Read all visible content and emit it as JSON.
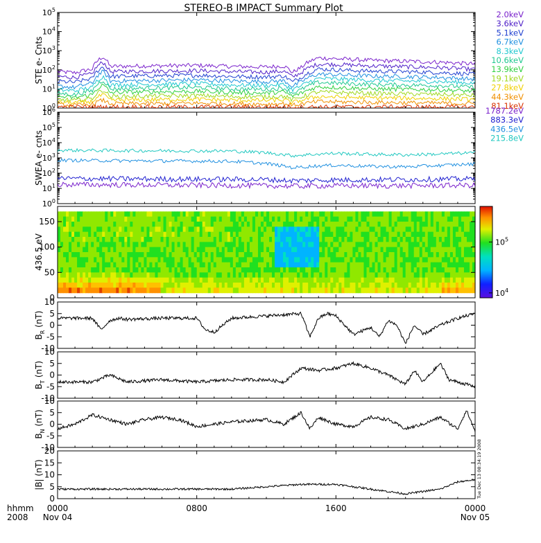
{
  "title": "STEREO-B IMPACT Summary Plot",
  "timestamp": "Tue Dec 13 08:34:19 2008",
  "time_axis": {
    "row1_label": "hhmm",
    "row2_label": "2008",
    "ticks": [
      {
        "t": 0,
        "label": "0000",
        "sub": "Nov 04"
      },
      {
        "t": 8,
        "label": "0800",
        "sub": ""
      },
      {
        "t": 16,
        "label": "1600",
        "sub": ""
      },
      {
        "t": 24,
        "label": "0000",
        "sub": "Nov 05"
      }
    ],
    "range_hours": [
      0,
      24
    ]
  },
  "chart_data": [
    {
      "id": "ste",
      "type": "line",
      "ylabel": "STE e- Cnts",
      "yscale": "log",
      "ylim": [
        1,
        100000
      ],
      "yticks": [
        {
          "v": 1,
          "base": "10",
          "exp": "0"
        },
        {
          "v": 10,
          "base": "10",
          "exp": "1"
        },
        {
          "v": 100,
          "base": "10",
          "exp": "2"
        },
        {
          "v": 1000,
          "base": "10",
          "exp": "3"
        },
        {
          "v": 10000,
          "base": "10",
          "exp": "4"
        },
        {
          "v": 100000,
          "base": "10",
          "exp": "5"
        }
      ],
      "series": [
        {
          "name": "2.0keV",
          "color": "#7a22cc",
          "x": [
            0,
            1,
            2,
            2.6,
            3,
            5,
            8,
            10,
            12,
            13,
            13.5,
            14,
            15,
            16,
            18,
            20,
            22,
            24
          ],
          "y": [
            80,
            70,
            110,
            480,
            150,
            160,
            170,
            150,
            140,
            160,
            70,
            130,
            420,
            380,
            310,
            280,
            250,
            200
          ]
        },
        {
          "name": "3.6keV",
          "color": "#4f20c8",
          "x": [
            0,
            1,
            2,
            2.6,
            3,
            5,
            8,
            10,
            12,
            13,
            13.5,
            14,
            15,
            16,
            18,
            20,
            22,
            24
          ],
          "y": [
            45,
            40,
            60,
            250,
            80,
            85,
            90,
            80,
            75,
            85,
            40,
            70,
            200,
            190,
            160,
            145,
            130,
            105
          ]
        },
        {
          "name": "5.1keV",
          "color": "#2040d0",
          "x": [
            0,
            1,
            2,
            2.6,
            3,
            5,
            8,
            10,
            12,
            13,
            13.5,
            14,
            15,
            16,
            18,
            20,
            22,
            24
          ],
          "y": [
            25,
            22,
            35,
            140,
            45,
            48,
            52,
            45,
            42,
            48,
            22,
            40,
            110,
            100,
            85,
            80,
            72,
            58
          ]
        },
        {
          "name": "6.7keV",
          "color": "#2090e0",
          "x": [
            0,
            1,
            2,
            2.6,
            3,
            5,
            8,
            10,
            12,
            13,
            13.5,
            14,
            15,
            16,
            18,
            20,
            22,
            24
          ],
          "y": [
            14,
            12,
            20,
            80,
            26,
            27,
            30,
            26,
            24,
            27,
            13,
            23,
            60,
            55,
            47,
            44,
            40,
            32
          ]
        },
        {
          "name": "8.3keV",
          "color": "#20c8d0",
          "x": [
            0,
            1,
            2,
            2.6,
            3,
            5,
            8,
            10,
            12,
            13,
            13.5,
            14,
            15,
            16,
            18,
            20,
            22,
            24
          ],
          "y": [
            9,
            8,
            12,
            45,
            16,
            17,
            19,
            16,
            15,
            17,
            9,
            14,
            35,
            33,
            28,
            26,
            24,
            20
          ]
        },
        {
          "name": "10.6keV",
          "color": "#20c890",
          "x": [
            0,
            1,
            2,
            2.6,
            3,
            5,
            8,
            10,
            12,
            13,
            13.5,
            14,
            15,
            16,
            18,
            20,
            22,
            24
          ],
          "y": [
            6,
            5,
            8,
            28,
            10,
            11,
            12,
            10,
            9.5,
            11,
            6,
            9,
            22,
            20,
            17,
            16,
            15,
            12
          ]
        },
        {
          "name": "13.9keV",
          "color": "#30d040",
          "x": [
            0,
            1,
            2,
            2.6,
            3,
            5,
            8,
            10,
            12,
            13,
            13.5,
            14,
            15,
            16,
            18,
            20,
            22,
            24
          ],
          "y": [
            4,
            3.5,
            5,
            16,
            6.5,
            7,
            7.5,
            6.5,
            6,
            7,
            4,
            6,
            13,
            12,
            10,
            9.5,
            9,
            7.5
          ]
        },
        {
          "name": "19.1keV",
          "color": "#a0d820",
          "x": [
            0,
            1,
            2,
            2.6,
            3,
            5,
            8,
            10,
            12,
            13,
            13.5,
            14,
            15,
            16,
            18,
            20,
            22,
            24
          ],
          "y": [
            2.8,
            2.5,
            3.2,
            9,
            4,
            4.2,
            4.5,
            4,
            3.8,
            4.2,
            2.6,
            3.8,
            7,
            6.5,
            5.8,
            5.5,
            5.2,
            4.5
          ]
        },
        {
          "name": "27.8keV",
          "color": "#f0d000",
          "x": [
            0,
            1,
            2,
            2.6,
            3,
            5,
            8,
            10,
            12,
            13,
            13.5,
            14,
            15,
            16,
            18,
            20,
            22,
            24
          ],
          "y": [
            2,
            1.9,
            2.2,
            5,
            2.6,
            2.7,
            2.9,
            2.6,
            2.5,
            2.7,
            1.9,
            2.5,
            4,
            3.8,
            3.4,
            3.3,
            3.1,
            2.8
          ]
        },
        {
          "name": "44.3keV",
          "color": "#f09000",
          "x": [
            0,
            1,
            2,
            2.6,
            3,
            5,
            8,
            10,
            12,
            13,
            13.5,
            14,
            15,
            16,
            18,
            20,
            22,
            24
          ],
          "y": [
            1.5,
            1.4,
            1.6,
            2.6,
            1.7,
            1.7,
            1.8,
            1.7,
            1.6,
            1.7,
            1.4,
            1.6,
            2.2,
            2.1,
            2,
            1.9,
            1.8,
            1.7
          ]
        },
        {
          "name": "81.1keV",
          "color": "#d83000",
          "x": [
            0,
            24
          ],
          "y": [
            1.15,
            1.15
          ]
        }
      ]
    },
    {
      "id": "swea",
      "type": "line",
      "ylabel": "SWEA e- cnts",
      "yscale": "log",
      "ylim": [
        1,
        1000000
      ],
      "yticks": [
        {
          "v": 1,
          "base": "10",
          "exp": "0"
        },
        {
          "v": 10,
          "base": "10",
          "exp": "1"
        },
        {
          "v": 100,
          "base": "10",
          "exp": "2"
        },
        {
          "v": 1000,
          "base": "10",
          "exp": "3"
        },
        {
          "v": 10000,
          "base": "10",
          "exp": "4"
        },
        {
          "v": 100000,
          "base": "10",
          "exp": "5"
        },
        {
          "v": 1000000,
          "base": "10",
          "exp": "6"
        }
      ],
      "series": [
        {
          "name": "1787.2eV",
          "color": "#7a22cc",
          "x": [
            0,
            4,
            8,
            12,
            13.5,
            16,
            20,
            24
          ],
          "y": [
            18,
            17,
            16,
            15,
            14,
            15,
            15,
            16
          ]
        },
        {
          "name": "883.3eV",
          "color": "#2020d0",
          "x": [
            0,
            4,
            8,
            12,
            13.5,
            16,
            20,
            24
          ],
          "y": [
            45,
            42,
            40,
            38,
            32,
            36,
            38,
            42
          ]
        },
        {
          "name": "436.5eV",
          "color": "#2090e0",
          "x": [
            0,
            4,
            8,
            10,
            12,
            13.5,
            15,
            16,
            18,
            20,
            22,
            24
          ],
          "y": [
            700,
            650,
            620,
            600,
            420,
            230,
            300,
            330,
            280,
            260,
            320,
            400
          ]
        },
        {
          "name": "215.8eV",
          "color": "#20c8c0",
          "x": [
            0,
            4,
            8,
            10,
            12,
            13.5,
            15,
            16,
            18,
            20,
            22,
            24
          ],
          "y": [
            3200,
            3000,
            2900,
            2800,
            2200,
            1400,
            1800,
            2000,
            1700,
            1600,
            1800,
            2200
          ]
        }
      ]
    },
    {
      "id": "pad",
      "type": "heatmap",
      "ylabel": "436.5 eV",
      "ylim": [
        0,
        180
      ],
      "yticks": [
        0,
        50,
        100,
        150
      ],
      "colorbar": {
        "scale": "log",
        "min": 8000,
        "max": 500000,
        "ticks": [
          {
            "v": 10000,
            "base": "10",
            "exp": "4"
          },
          {
            "v": 100000,
            "base": "10",
            "exp": "5"
          }
        ]
      }
    },
    {
      "id": "br",
      "type": "line",
      "ylabel": "BR (nT)",
      "ylabel_main": "B",
      "ylabel_sub": "R",
      "ylabel_unit": " (nT)",
      "ylim": [
        -10,
        10
      ],
      "yticks": [
        -10,
        -5,
        0,
        5,
        10
      ],
      "series": [
        {
          "x": [
            0,
            2,
            2.5,
            3,
            3.5,
            4,
            6,
            8,
            8.5,
            9,
            10,
            12,
            14,
            14.5,
            15,
            15.5,
            16,
            17,
            18,
            18.5,
            19,
            19.5,
            20,
            20.5,
            21,
            22,
            23,
            24
          ],
          "y": [
            3,
            3,
            -2,
            2,
            3,
            2.5,
            3,
            3,
            -2,
            -3,
            3,
            4,
            5,
            -5,
            3,
            5,
            4,
            -4,
            -1,
            -5,
            2,
            0,
            -8,
            0,
            -4,
            0,
            3,
            5
          ]
        }
      ]
    },
    {
      "id": "bt",
      "type": "line",
      "ylabel": "BT (nT)",
      "ylabel_main": "B",
      "ylabel_sub": "T",
      "ylabel_unit": " (nT)",
      "ylim": [
        -10,
        10
      ],
      "yticks": [
        -10,
        -5,
        0,
        5,
        10
      ],
      "series": [
        {
          "x": [
            0,
            2,
            3,
            4,
            6,
            8,
            10,
            12,
            13,
            14,
            15,
            16,
            17,
            18,
            19,
            20,
            20.5,
            21,
            22,
            22.5,
            23,
            24
          ],
          "y": [
            -3,
            -3,
            0,
            -3,
            -2,
            -3,
            -2,
            -2,
            -3,
            3,
            2,
            3,
            5,
            3,
            0,
            -4,
            2,
            -3,
            5,
            -2,
            -3,
            -5
          ]
        }
      ]
    },
    {
      "id": "bn",
      "type": "line",
      "ylabel": "BN (nT)",
      "ylabel_main": "B",
      "ylabel_sub": "N",
      "ylabel_unit": " (nT)",
      "ylim": [
        -10,
        10
      ],
      "yticks": [
        -10,
        -5,
        0,
        5,
        10
      ],
      "series": [
        {
          "x": [
            0,
            1,
            2,
            3,
            4,
            5,
            6,
            7,
            8,
            10,
            12,
            13,
            14,
            14.5,
            15,
            16,
            17,
            18,
            19,
            20,
            21,
            22,
            23,
            23.5,
            24
          ],
          "y": [
            -2,
            0,
            4,
            2,
            0,
            2,
            3,
            2,
            -1,
            1,
            2,
            0,
            5,
            -2,
            3,
            0,
            -1,
            3,
            2,
            -2,
            0,
            3,
            -2,
            6,
            -3
          ]
        }
      ]
    },
    {
      "id": "btot",
      "type": "line",
      "ylabel": "|B| (nT)",
      "ylim": [
        0,
        20
      ],
      "yticks": [
        0,
        5,
        10,
        15,
        20
      ],
      "series": [
        {
          "x": [
            0,
            2,
            4,
            6,
            8,
            10,
            12,
            14,
            16,
            18,
            19,
            20,
            22,
            23,
            24
          ],
          "y": [
            4,
            4,
            4,
            4,
            4,
            4,
            5,
            6,
            6,
            4,
            3,
            2,
            4,
            7,
            8
          ]
        }
      ]
    }
  ]
}
